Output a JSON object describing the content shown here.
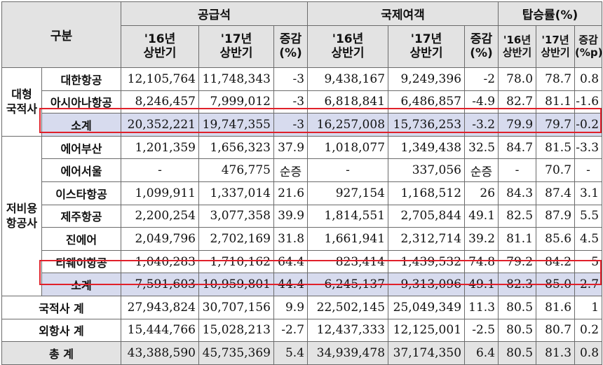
{
  "header": {
    "category": "구분",
    "groups": [
      "공급석",
      "국제여객",
      "탑승률(%)"
    ],
    "sub_16": "'16년 상반기",
    "sub_17": "'17년 상반기",
    "change_pct": "증감 (%)",
    "change_pp": "증감 (%p)"
  },
  "groups": {
    "major": "대형 국적사",
    "lcc": "저비용 항공사"
  },
  "rows": [
    {
      "name": "대한항공",
      "v": [
        "12,105,764",
        "11,748,343",
        "-3",
        "9,438,167",
        "9,249,396",
        "-2",
        "78.0",
        "78.7",
        "0.8"
      ]
    },
    {
      "name": "아시아나항공",
      "v": [
        "8,246,457",
        "7,999,012",
        "-3",
        "6,818,841",
        "6,486,857",
        "-4.9",
        "82.7",
        "81.1",
        "-1.6"
      ]
    },
    {
      "name": "소계",
      "v": [
        "20,352,221",
        "19,747,355",
        "-3",
        "16,257,008",
        "15,736,253",
        "-3.2",
        "79.9",
        "79.7",
        "-0.2"
      ]
    },
    {
      "name": "에어부산",
      "v": [
        "1,201,359",
        "1,656,323",
        "37.9",
        "1,018,077",
        "1,349,438",
        "32.5",
        "84.7",
        "81.5",
        "-3.3"
      ]
    },
    {
      "name": "에어서울",
      "v": [
        "-",
        "476,775",
        "순증",
        "-",
        "337,056",
        "순증",
        "-",
        "70.7",
        "-"
      ]
    },
    {
      "name": "이스타항공",
      "v": [
        "1,099,911",
        "1,337,014",
        "21.6",
        "927,154",
        "1,168,512",
        "26",
        "84.3",
        "87.4",
        "3.1"
      ]
    },
    {
      "name": "제주항공",
      "v": [
        "2,200,254",
        "3,077,358",
        "39.9",
        "1,814,551",
        "2,705,844",
        "49.1",
        "82.5",
        "87.9",
        "5.5"
      ]
    },
    {
      "name": "진에어",
      "v": [
        "2,049,796",
        "2,702,169",
        "31.8",
        "1,661,941",
        "2,312,714",
        "39.2",
        "81.1",
        "85.6",
        "4.5"
      ]
    },
    {
      "name": "티웨이항공",
      "v": [
        "1,040,283",
        "1,710,162",
        "64.4",
        "823,414",
        "1,439,532",
        "74.8",
        "79.2",
        "84.2",
        "5"
      ]
    },
    {
      "name": "소계",
      "v": [
        "7,591,603",
        "10,959,801",
        "44.4",
        "6,245,137",
        "9,313,096",
        "49.1",
        "82.3",
        "85.0",
        "2.7"
      ]
    },
    {
      "name": "국적사 계",
      "v": [
        "27,943,824",
        "30,707,156",
        "9.9",
        "22,502,145",
        "25,049,349",
        "11.3",
        "80.5",
        "81.6",
        "1"
      ]
    },
    {
      "name": "외항사 계",
      "v": [
        "15,444,766",
        "15,028,213",
        "-2.7",
        "12,437,333",
        "12,125,001",
        "-2.5",
        "80.5",
        "80.7",
        "0.2"
      ]
    },
    {
      "name": "총 계",
      "v": [
        "43,388,590",
        "45,735,369",
        "5.4",
        "34,939,478",
        "37,174,350",
        "6.4",
        "80.5",
        "81.3",
        "0.8"
      ]
    }
  ]
}
